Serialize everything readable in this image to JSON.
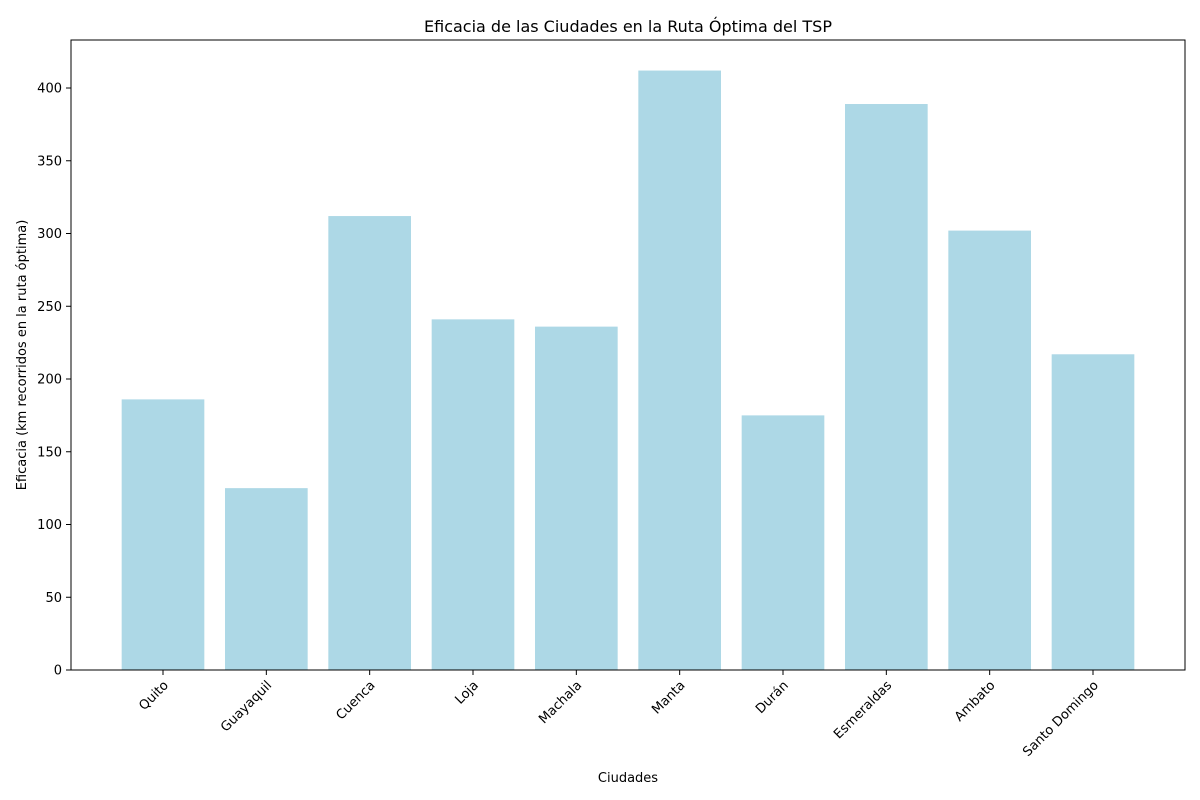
{
  "chart_data": {
    "type": "bar",
    "title": "Eficacia de las Ciudades en la Ruta Óptima del TSP",
    "xlabel": "Ciudades",
    "ylabel": "Eficacia (km recorridos en la ruta óptima)",
    "categories": [
      "Quito",
      "Guayaquil",
      "Cuenca",
      "Loja",
      "Machala",
      "Manta",
      "Durán",
      "Esmeraldas",
      "Ambato",
      "Santo Domingo"
    ],
    "values": [
      186,
      125,
      312,
      241,
      236,
      412,
      175,
      389,
      302,
      217
    ],
    "ylim": [
      0,
      433
    ],
    "yticks": [
      0,
      50,
      100,
      150,
      200,
      250,
      300,
      350,
      400
    ],
    "bar_color": "#add8e6",
    "grid": false,
    "legend": "none"
  }
}
